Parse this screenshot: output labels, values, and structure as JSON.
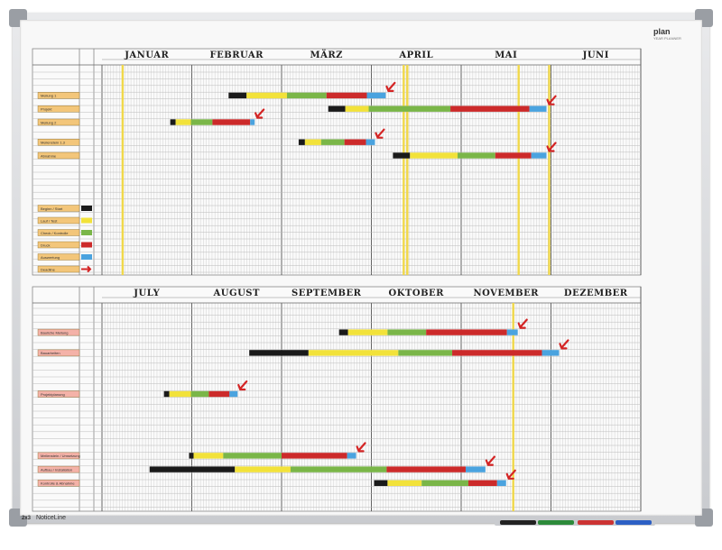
{
  "brand": {
    "name": "plan",
    "subtitle": "YEAR PLANNER",
    "footer_mark": "2x3",
    "footer_text": "NoticeLine"
  },
  "colors": {
    "black": "#1a1a1a",
    "yellow": "#f2e23a",
    "green": "#7ab648",
    "red": "#cc2a2a",
    "blue": "#4aa3df",
    "arrow": "#d42424",
    "today_line": "#f0d84a"
  },
  "planner_top": {
    "months": [
      "JANUAR",
      "FEBRUAR",
      "MÄRZ",
      "APRIL",
      "MAI",
      "JUNI"
    ],
    "rows": [
      {
        "label": "Meilung 1",
        "segments": [
          [
            "black",
            0.2
          ],
          [
            "yellow",
            0.45
          ],
          [
            "green",
            0.44
          ],
          [
            "red",
            0.45
          ],
          [
            "blue",
            0.21
          ]
        ],
        "start": 1.41
      },
      {
        "label": "Projekt",
        "segments": [
          [
            "black",
            0.19
          ],
          [
            "yellow",
            0.26
          ],
          [
            "green",
            0.91
          ],
          [
            "red",
            0.88
          ],
          [
            "blue",
            0.19
          ]
        ],
        "start": 2.52
      },
      {
        "label": "Meilung 2",
        "segments": [
          [
            "black",
            0.06
          ],
          [
            "yellow",
            0.17
          ],
          [
            "green",
            0.24
          ],
          [
            "red",
            0.42
          ],
          [
            "blue",
            0.05
          ]
        ],
        "start": 0.76
      },
      {
        "label": "Meilenstein 1.3",
        "segments": [
          [
            "black",
            0.07
          ],
          [
            "yellow",
            0.18
          ],
          [
            "green",
            0.26
          ],
          [
            "red",
            0.24
          ],
          [
            "blue",
            0.1
          ]
        ],
        "start": 2.19
      },
      {
        "label": "Abnahme",
        "segments": [
          [
            "black",
            0.19
          ],
          [
            "yellow",
            0.53
          ],
          [
            "green",
            0.42
          ],
          [
            "red",
            0.4
          ],
          [
            "blue",
            0.17
          ]
        ],
        "start": 3.24
      }
    ],
    "today_lines": [
      0.23,
      3.36,
      3.4,
      4.64,
      4.98
    ],
    "legend": [
      {
        "label": "Beginn / Start",
        "color": "black"
      },
      {
        "label": "Lauf / Test",
        "color": "yellow"
      },
      {
        "label": "Check / Kontrolle",
        "color": "green"
      },
      {
        "label": "Druck",
        "color": "red"
      },
      {
        "label": "Auswertung",
        "color": "blue"
      },
      {
        "label": "Deadline",
        "color": "arrow"
      }
    ]
  },
  "planner_bottom": {
    "months": [
      "JULY",
      "AUGUST",
      "SEPTEMBER",
      "OKTOBER",
      "NOVEMBER",
      "DEZEMBER"
    ],
    "rows": [
      {
        "label": "Bauliche Meilung",
        "segments": [
          [
            "black",
            0.1
          ],
          [
            "yellow",
            0.44
          ],
          [
            "green",
            0.43
          ],
          [
            "red",
            0.9
          ],
          [
            "blue",
            0.12
          ]
        ],
        "start": 2.64
      },
      {
        "label": "Bauarbeiten",
        "segments": [
          [
            "black",
            0.66
          ],
          [
            "yellow",
            1.0
          ],
          [
            "green",
            0.6
          ],
          [
            "red",
            1.0
          ],
          [
            "blue",
            0.19
          ]
        ],
        "start": 1.64
      },
      {
        "label": "Projektplanung",
        "segments": [
          [
            "black",
            0.06
          ],
          [
            "yellow",
            0.24
          ],
          [
            "green",
            0.2
          ],
          [
            "red",
            0.23
          ],
          [
            "blue",
            0.09
          ]
        ],
        "start": 0.69
      },
      {
        "label": "Meilenstein / Umsetzung",
        "segments": [
          [
            "black",
            0.05
          ],
          [
            "yellow",
            0.33
          ],
          [
            "green",
            0.65
          ],
          [
            "red",
            0.73
          ],
          [
            "blue",
            0.1
          ]
        ],
        "start": 0.97
      },
      {
        "label": "Aufbau / Installation",
        "segments": [
          [
            "black",
            0.95
          ],
          [
            "yellow",
            0.62
          ],
          [
            "green",
            1.07
          ],
          [
            "red",
            0.88
          ],
          [
            "blue",
            0.22
          ]
        ],
        "start": 0.53
      },
      {
        "label": "Kontrolle & Abnahme",
        "segments": [
          [
            "black",
            0.15
          ],
          [
            "yellow",
            0.38
          ],
          [
            "green",
            0.52
          ],
          [
            "red",
            0.32
          ],
          [
            "blue",
            0.1
          ]
        ],
        "start": 3.03
      }
    ],
    "row_slots": [
      2,
      3,
      6,
      10,
      11,
      12
    ],
    "top_row_slots": [
      1,
      2,
      4,
      6,
      7
    ],
    "today_lines": [
      4.58
    ]
  }
}
